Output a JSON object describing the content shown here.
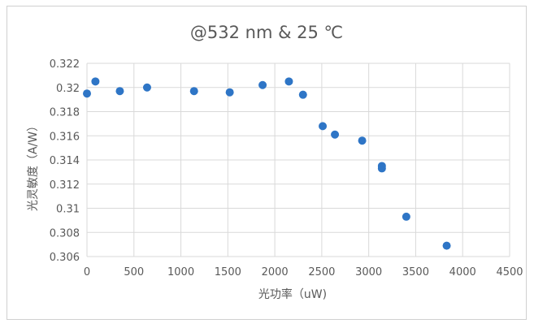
{
  "chart_data": {
    "type": "scatter",
    "title": "@532 nm & 25 ℃",
    "xlabel": "光功率（uW)",
    "ylabel": "光灵敏度（A/W）",
    "xlim": [
      0,
      4500
    ],
    "ylim": [
      0.306,
      0.322
    ],
    "x_ticks": [
      0,
      500,
      1000,
      1500,
      2000,
      2500,
      3000,
      3500,
      4000,
      4500
    ],
    "x_tick_labels": [
      "0",
      "500",
      "1000",
      "1500",
      "2000",
      "2500",
      "3000",
      "3500",
      "4000",
      "4500"
    ],
    "y_ticks": [
      0.306,
      0.308,
      0.31,
      0.312,
      0.314,
      0.316,
      0.318,
      0.32,
      0.322
    ],
    "y_tick_labels": [
      "0.306",
      "0.308",
      "0.31",
      "0.312",
      "0.314",
      "0.316",
      "0.318",
      "0.32",
      "0.322"
    ],
    "grid": true,
    "legend": "none",
    "marker_color": "#2e75c6",
    "series": [
      {
        "points": [
          {
            "x": 0,
            "y": 0.3195
          },
          {
            "x": 90,
            "y": 0.3205
          },
          {
            "x": 350,
            "y": 0.3197
          },
          {
            "x": 640,
            "y": 0.32
          },
          {
            "x": 1140,
            "y": 0.3197
          },
          {
            "x": 1520,
            "y": 0.3196
          },
          {
            "x": 1870,
            "y": 0.3202
          },
          {
            "x": 2150,
            "y": 0.3205
          },
          {
            "x": 2300,
            "y": 0.3194
          },
          {
            "x": 2510,
            "y": 0.3168
          },
          {
            "x": 2640,
            "y": 0.3161
          },
          {
            "x": 2930,
            "y": 0.3156
          },
          {
            "x": 3140,
            "y": 0.3135
          },
          {
            "x": 3140,
            "y": 0.3133
          },
          {
            "x": 3400,
            "y": 0.3093
          },
          {
            "x": 3830,
            "y": 0.3069
          }
        ]
      }
    ]
  }
}
